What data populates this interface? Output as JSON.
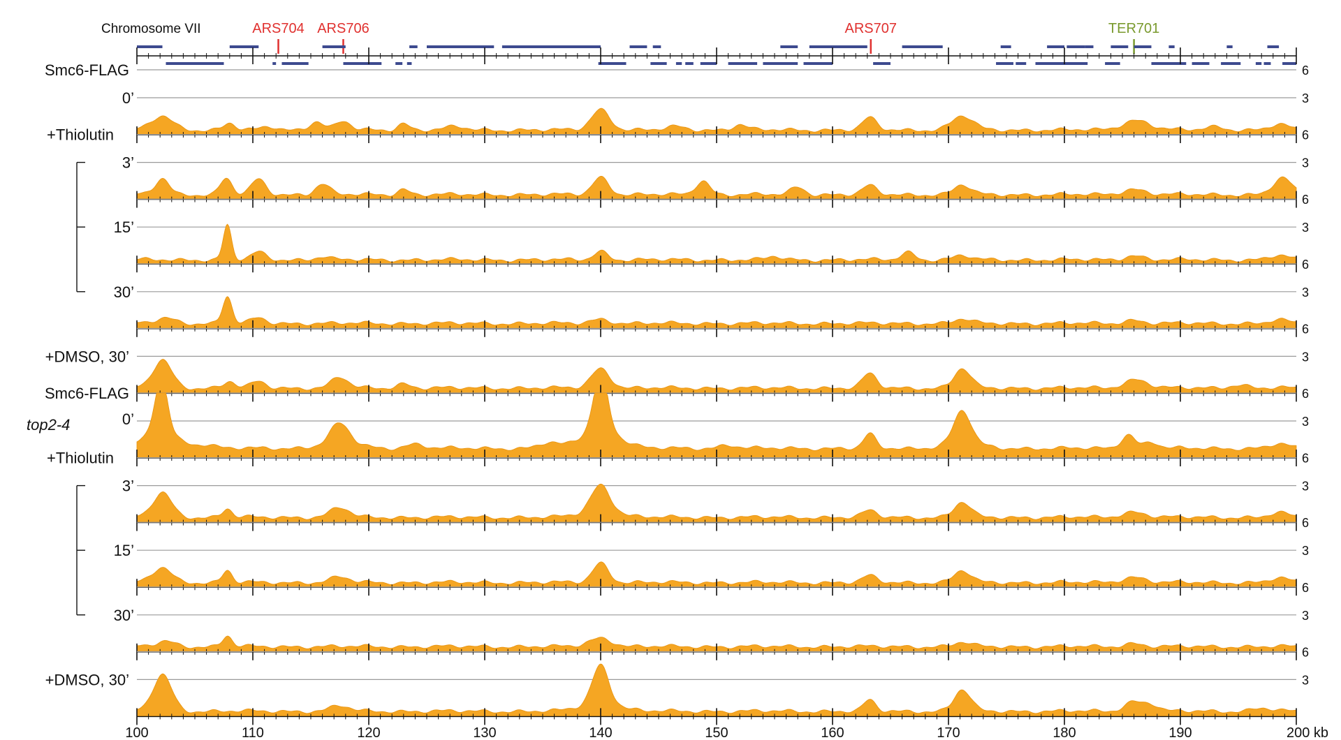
{
  "chart_data": {
    "type": "area",
    "chromosome_label": "Chromosome VII",
    "x_unit": "kb",
    "xlim": [
      100,
      200
    ],
    "x_ticks": [
      100,
      110,
      120,
      130,
      140,
      150,
      160,
      170,
      180,
      190,
      200
    ],
    "x_tick_labels": [
      "100",
      "110",
      "120",
      "130",
      "140",
      "150",
      "160",
      "170",
      "180",
      "190",
      "200 kb"
    ],
    "ylim": [
      0,
      6
    ],
    "y_tick_labels": [
      "6",
      "3"
    ],
    "features": [
      {
        "name": "ARS704",
        "position": 112.2,
        "color": "#e0312f"
      },
      {
        "name": "ARS706",
        "position": 117.8,
        "color": "#e0312f"
      },
      {
        "name": "ARS707",
        "position": 163.3,
        "color": "#e0312f"
      },
      {
        "name": "TER701",
        "position": 186.0,
        "color": "#7a9a2e"
      }
    ],
    "genes_top_strand": [
      [
        100,
        102.2
      ],
      [
        108,
        110.5
      ],
      [
        116,
        118
      ],
      [
        123.5,
        124.2
      ],
      [
        125,
        130
      ],
      [
        130,
        130.8
      ],
      [
        131.5,
        140
      ],
      [
        142.5,
        144
      ],
      [
        144.5,
        145.2
      ],
      [
        155.5,
        157
      ],
      [
        158,
        163
      ],
      [
        166,
        169.5
      ],
      [
        174.5,
        175.4
      ],
      [
        178.5,
        180
      ],
      [
        180.2,
        181.8
      ],
      [
        181.8,
        182.5
      ],
      [
        184,
        185.5
      ],
      [
        186,
        187.5
      ],
      [
        189,
        189.5
      ],
      [
        194,
        194.5
      ],
      [
        197.5,
        198.5
      ]
    ],
    "genes_bottom_strand": [
      [
        102.5,
        107.5
      ],
      [
        111.7,
        112
      ],
      [
        112.5,
        114.8
      ],
      [
        117.8,
        121.1
      ],
      [
        122.3,
        122.9
      ],
      [
        123.3,
        123.7
      ],
      [
        139.8,
        142.2
      ],
      [
        144.3,
        145.7
      ],
      [
        146.5,
        147
      ],
      [
        147.3,
        148
      ],
      [
        148.6,
        150
      ],
      [
        151,
        153.5
      ],
      [
        154,
        157
      ],
      [
        157.5,
        160
      ],
      [
        163.5,
        165
      ],
      [
        174.1,
        175.6
      ],
      [
        175.8,
        176.7
      ],
      [
        177.5,
        182
      ],
      [
        183.5,
        184.8
      ],
      [
        187.5,
        190.5
      ],
      [
        191,
        192.5
      ],
      [
        193.5,
        195.2
      ],
      [
        196.5,
        197
      ],
      [
        197.2,
        197.8
      ],
      [
        198.8,
        200
      ]
    ],
    "fill_color": "#f5a623",
    "series": [
      {
        "name": "0’",
        "sample": "Smc6-FLAG",
        "row_labels": [
          "Smc6-FLAG",
          "0’"
        ],
        "baseline": 0.45,
        "peaks": [
          [
            102.2,
            1.3,
            0.9
          ],
          [
            108,
            0.6,
            0.5
          ],
          [
            111.5,
            0.3,
            0.7
          ],
          [
            115.5,
            0.8,
            0.6
          ],
          [
            117.8,
            0.8,
            0.6
          ],
          [
            123,
            0.6,
            0.5
          ],
          [
            127.5,
            0.3,
            0.8
          ],
          [
            140,
            1.9,
            0.8
          ],
          [
            146.5,
            0.3,
            0.8
          ],
          [
            152,
            0.5,
            0.6
          ],
          [
            163.2,
            1.1,
            0.6
          ],
          [
            171.2,
            1.3,
            0.9
          ],
          [
            186.2,
            0.9,
            1.2
          ],
          [
            193,
            0.3,
            0.8
          ],
          [
            198.5,
            0.5,
            0.8
          ]
        ]
      },
      {
        "name": "3’",
        "sample": "Smc6-FLAG",
        "row_labels": [
          "+Thiolutin",
          "3’"
        ],
        "baseline": 0.45,
        "peaks": [
          [
            102.2,
            1.5,
            0.6
          ],
          [
            107.7,
            1.5,
            0.5
          ],
          [
            110.5,
            1.4,
            0.6
          ],
          [
            116,
            1,
            0.6
          ],
          [
            123,
            0.5,
            0.5
          ],
          [
            140,
            1.6,
            0.7
          ],
          [
            148.8,
            1.3,
            0.6
          ],
          [
            157,
            0.7,
            0.6
          ],
          [
            163.2,
            0.8,
            0.6
          ],
          [
            171.2,
            0.9,
            0.7
          ],
          [
            186,
            0.5,
            1
          ],
          [
            198.8,
            1.5,
            0.8
          ]
        ]
      },
      {
        "name": "15’",
        "sample": "Smc6-FLAG",
        "row_labels": [
          "15’"
        ],
        "baseline": 0.4,
        "peaks": [
          [
            107.8,
            3.2,
            0.35
          ],
          [
            110.5,
            0.7,
            0.6
          ],
          [
            116,
            0.3,
            0.6
          ],
          [
            140,
            0.8,
            0.6
          ],
          [
            155,
            0.3,
            0.6
          ],
          [
            166.5,
            0.7,
            0.6
          ],
          [
            171.2,
            0.4,
            0.7
          ],
          [
            186,
            0.4,
            0.8
          ],
          [
            198.5,
            0.4,
            0.8
          ]
        ]
      },
      {
        "name": "30’",
        "sample": "Smc6-FLAG",
        "row_labels": [
          "30’"
        ],
        "baseline": 0.5,
        "peaks": [
          [
            102.5,
            0.5,
            0.8
          ],
          [
            107.8,
            2.5,
            0.4
          ],
          [
            110.5,
            0.5,
            0.6
          ],
          [
            140,
            0.4,
            0.8
          ],
          [
            171.2,
            0.4,
            0.7
          ],
          [
            186,
            0.3,
            0.8
          ],
          [
            198.5,
            0.3,
            0.8
          ]
        ]
      },
      {
        "name": "+DMSO, 30’",
        "sample": "Smc6-FLAG",
        "row_labels": [
          "+DMSO, 30’"
        ],
        "baseline": 0.5,
        "peaks": [
          [
            102.2,
            2.6,
            0.8
          ],
          [
            108,
            0.6,
            0.5
          ],
          [
            110.5,
            0.6,
            0.6
          ],
          [
            117.5,
            1,
            0.7
          ],
          [
            123,
            0.4,
            0.6
          ],
          [
            140,
            1.8,
            0.8
          ],
          [
            163.2,
            1.3,
            0.6
          ],
          [
            171.2,
            1.8,
            0.7
          ],
          [
            186.2,
            0.8,
            1
          ],
          [
            195,
            0.3,
            0.8
          ]
        ]
      },
      {
        "name": "0’",
        "sample": "Smc6-FLAG top2-4",
        "row_labels": [
          "Smc6-FLAG",
          "top2-4",
          "0’"
        ],
        "baseline": 0.9,
        "peaks": [
          [
            102.1,
            5.2,
            0.55
          ],
          [
            102.1,
            1.3,
            1.6
          ],
          [
            106,
            0.3,
            0.8
          ],
          [
            117.5,
            1.8,
            0.8
          ],
          [
            117.5,
            0.5,
            1.6
          ],
          [
            124,
            0.4,
            0.8
          ],
          [
            140,
            5.2,
            0.6
          ],
          [
            140,
            1.8,
            1.6
          ],
          [
            135.5,
            0.5,
            0.8
          ],
          [
            151,
            0.3,
            0.8
          ],
          [
            163.2,
            1.3,
            0.5
          ],
          [
            171.2,
            2.8,
            0.7
          ],
          [
            171.2,
            0.7,
            1.4
          ],
          [
            185.5,
            1.3,
            0.6
          ],
          [
            187.5,
            0.6,
            0.6
          ],
          [
            198.5,
            0.4,
            0.8
          ]
        ]
      },
      {
        "name": "3’",
        "sample": "Smc6-FLAG top2-4",
        "row_labels": [
          "+Thiolutin",
          "3’"
        ],
        "baseline": 0.5,
        "peaks": [
          [
            102.2,
            2.3,
            0.8
          ],
          [
            107.8,
            0.8,
            0.4
          ],
          [
            117.5,
            0.9,
            0.8
          ],
          [
            140,
            2.4,
            0.8
          ],
          [
            140,
            0.6,
            1.6
          ],
          [
            163.2,
            0.6,
            0.6
          ],
          [
            171.2,
            1.4,
            0.7
          ],
          [
            186,
            0.5,
            1
          ],
          [
            198.5,
            0.4,
            0.8
          ]
        ]
      },
      {
        "name": "15’",
        "sample": "Smc6-FLAG top2-4",
        "row_labels": [
          "15’"
        ],
        "baseline": 0.45,
        "peaks": [
          [
            102.2,
            1.4,
            0.8
          ],
          [
            107.8,
            1.1,
            0.4
          ],
          [
            117.5,
            0.5,
            0.8
          ],
          [
            140,
            1.8,
            0.7
          ],
          [
            163.2,
            0.6,
            0.6
          ],
          [
            171.2,
            1.1,
            0.7
          ],
          [
            186,
            0.5,
            1
          ],
          [
            198.5,
            0.4,
            0.8
          ]
        ]
      },
      {
        "name": "30’",
        "sample": "Smc6-FLAG top2-4",
        "row_labels": [
          "30’"
        ],
        "baseline": 0.5,
        "peaks": [
          [
            102.5,
            0.5,
            0.8
          ],
          [
            107.8,
            1,
            0.4
          ],
          [
            140,
            0.8,
            1
          ],
          [
            171.2,
            0.4,
            0.7
          ],
          [
            186,
            0.3,
            0.8
          ]
        ]
      },
      {
        "name": "+DMSO, 30’",
        "sample": "Smc6-FLAG top2-4",
        "row_labels": [
          "+DMSO, 30’"
        ],
        "baseline": 0.5,
        "peaks": [
          [
            102.2,
            3.4,
            0.8
          ],
          [
            117.5,
            0.5,
            0.8
          ],
          [
            140,
            3.5,
            0.7
          ],
          [
            140,
            0.8,
            1.6
          ],
          [
            163.2,
            1,
            0.5
          ],
          [
            171.2,
            2,
            0.7
          ],
          [
            186,
            0.9,
            0.8
          ],
          [
            187.5,
            0.6,
            0.6
          ],
          [
            197,
            0.3,
            0.8
          ]
        ]
      }
    ],
    "thiolutin_brackets": [
      [
        1,
        3
      ],
      [
        6,
        8
      ]
    ]
  }
}
